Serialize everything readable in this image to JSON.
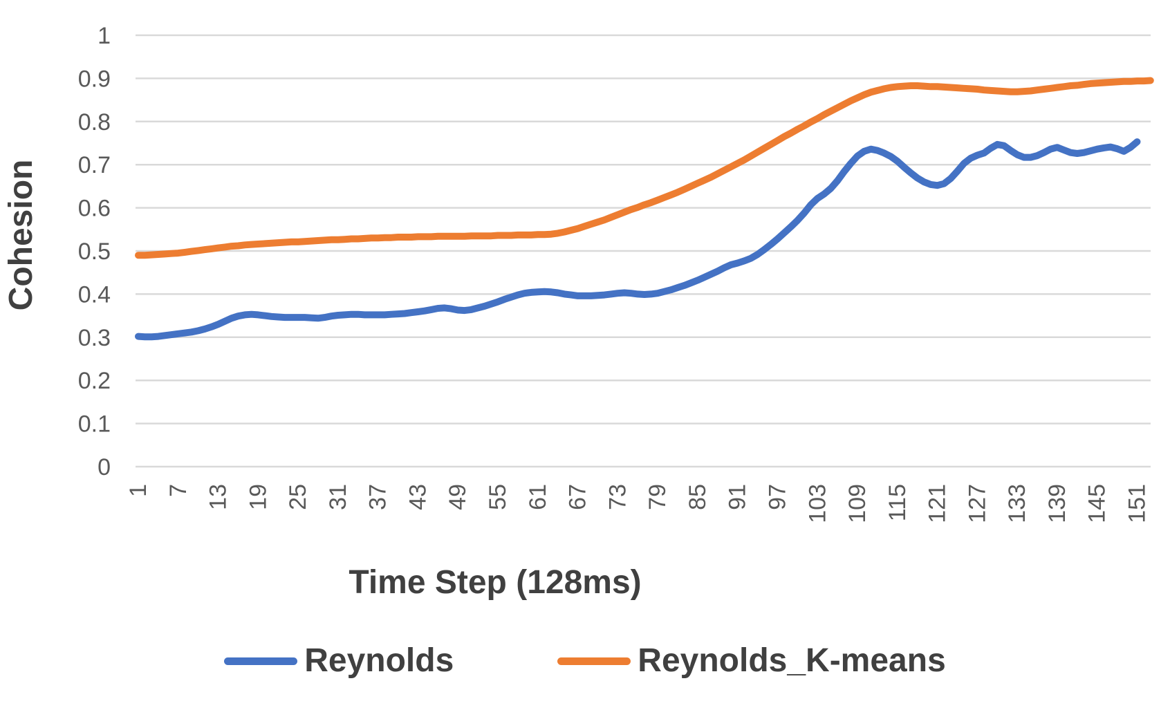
{
  "chart_data": {
    "type": "line",
    "xlabel": "Time Step (128ms)",
    "ylabel": "Cohesion",
    "x_start": 1,
    "x_ticks": [
      1,
      7,
      13,
      19,
      25,
      31,
      37,
      43,
      49,
      55,
      61,
      67,
      73,
      79,
      85,
      91,
      97,
      103,
      109,
      115,
      121,
      127,
      133,
      139,
      145,
      151
    ],
    "y_tick_labels": [
      "0",
      "0.1",
      "0.2",
      "0.3",
      "0.4",
      "0.5",
      "0.6",
      "0.7",
      "0.8",
      "0.9",
      "1"
    ],
    "ylim": [
      0,
      1
    ],
    "grid": true,
    "legend_position": "bottom",
    "colors": {
      "grid": "#D9D9D9",
      "tick_text": "#595959",
      "title_text": "#404040",
      "background": "#FFFFFF"
    },
    "series": [
      {
        "name": "Reynolds",
        "color": "#4472C4",
        "values": [
          0.302,
          0.301,
          0.301,
          0.302,
          0.304,
          0.306,
          0.308,
          0.31,
          0.312,
          0.315,
          0.319,
          0.324,
          0.33,
          0.337,
          0.344,
          0.349,
          0.352,
          0.353,
          0.352,
          0.35,
          0.348,
          0.347,
          0.346,
          0.346,
          0.346,
          0.346,
          0.345,
          0.344,
          0.346,
          0.349,
          0.351,
          0.352,
          0.353,
          0.353,
          0.352,
          0.352,
          0.352,
          0.352,
          0.353,
          0.354,
          0.355,
          0.357,
          0.359,
          0.361,
          0.364,
          0.367,
          0.368,
          0.366,
          0.363,
          0.362,
          0.364,
          0.368,
          0.372,
          0.377,
          0.382,
          0.388,
          0.393,
          0.398,
          0.402,
          0.404,
          0.405,
          0.406,
          0.405,
          0.403,
          0.4,
          0.398,
          0.396,
          0.396,
          0.396,
          0.397,
          0.398,
          0.4,
          0.402,
          0.403,
          0.402,
          0.4,
          0.399,
          0.4,
          0.402,
          0.406,
          0.41,
          0.415,
          0.42,
          0.426,
          0.432,
          0.439,
          0.446,
          0.453,
          0.461,
          0.468,
          0.472,
          0.477,
          0.483,
          0.492,
          0.503,
          0.515,
          0.528,
          0.542,
          0.556,
          0.571,
          0.588,
          0.607,
          0.622,
          0.632,
          0.645,
          0.663,
          0.684,
          0.703,
          0.72,
          0.731,
          0.736,
          0.733,
          0.727,
          0.719,
          0.708,
          0.694,
          0.681,
          0.669,
          0.66,
          0.654,
          0.652,
          0.656,
          0.668,
          0.685,
          0.703,
          0.715,
          0.722,
          0.727,
          0.738,
          0.747,
          0.744,
          0.733,
          0.723,
          0.717,
          0.717,
          0.721,
          0.728,
          0.736,
          0.74,
          0.734,
          0.728,
          0.726,
          0.728,
          0.732,
          0.736,
          0.739,
          0.741,
          0.737,
          0.731,
          0.74,
          0.753
        ]
      },
      {
        "name": "Reynolds_K-means",
        "color": "#ED7D31",
        "values": [
          0.49,
          0.49,
          0.491,
          0.492,
          0.493,
          0.494,
          0.495,
          0.497,
          0.499,
          0.501,
          0.503,
          0.505,
          0.507,
          0.509,
          0.511,
          0.512,
          0.514,
          0.515,
          0.516,
          0.517,
          0.518,
          0.519,
          0.52,
          0.521,
          0.521,
          0.522,
          0.523,
          0.524,
          0.525,
          0.526,
          0.526,
          0.527,
          0.528,
          0.528,
          0.529,
          0.53,
          0.53,
          0.531,
          0.531,
          0.532,
          0.532,
          0.532,
          0.533,
          0.533,
          0.533,
          0.534,
          0.534,
          0.534,
          0.534,
          0.534,
          0.535,
          0.535,
          0.535,
          0.535,
          0.536,
          0.536,
          0.536,
          0.537,
          0.537,
          0.537,
          0.538,
          0.538,
          0.539,
          0.541,
          0.544,
          0.548,
          0.552,
          0.557,
          0.562,
          0.567,
          0.572,
          0.578,
          0.584,
          0.59,
          0.596,
          0.601,
          0.607,
          0.612,
          0.618,
          0.624,
          0.63,
          0.636,
          0.643,
          0.65,
          0.657,
          0.664,
          0.671,
          0.679,
          0.687,
          0.695,
          0.703,
          0.711,
          0.72,
          0.729,
          0.738,
          0.747,
          0.756,
          0.765,
          0.773,
          0.782,
          0.79,
          0.799,
          0.807,
          0.816,
          0.824,
          0.832,
          0.84,
          0.848,
          0.855,
          0.862,
          0.868,
          0.872,
          0.876,
          0.879,
          0.881,
          0.882,
          0.883,
          0.883,
          0.882,
          0.881,
          0.881,
          0.88,
          0.879,
          0.878,
          0.877,
          0.876,
          0.875,
          0.873,
          0.872,
          0.871,
          0.87,
          0.869,
          0.869,
          0.87,
          0.871,
          0.873,
          0.875,
          0.877,
          0.879,
          0.881,
          0.883,
          0.884,
          0.886,
          0.888,
          0.889,
          0.89,
          0.891,
          0.892,
          0.893,
          0.893,
          0.894,
          0.894,
          0.895
        ]
      }
    ]
  }
}
